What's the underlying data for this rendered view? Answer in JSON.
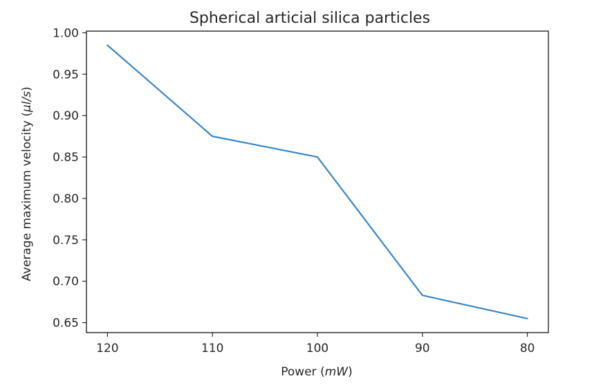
{
  "chart_data": {
    "type": "line",
    "title": "Spherical articial silica particles",
    "xlabel_prefix": "Power (",
    "xlabel_unit": "mW",
    "xlabel_suffix": ")",
    "ylabel_prefix": "Average maximum velocity (",
    "ylabel_unit": "μl/s",
    "ylabel_suffix": ")",
    "x": [
      120,
      110,
      100,
      90,
      80
    ],
    "xticks": [
      "120",
      "110",
      "100",
      "90",
      "80"
    ],
    "x_axis_inverted": true,
    "xlim": [
      122,
      78
    ],
    "ylim": [
      0.638,
      1.002
    ],
    "yticks": [
      0.65,
      0.7,
      0.75,
      0.8,
      0.85,
      0.9,
      0.95,
      1.0
    ],
    "ytick_labels": [
      "0.65",
      "0.70",
      "0.75",
      "0.80",
      "0.85",
      "0.90",
      "0.95",
      "1.00"
    ],
    "series": [
      {
        "values": [
          0.985,
          0.875,
          0.85,
          0.683,
          0.655
        ],
        "color": "#3a86c2"
      }
    ],
    "grid": false,
    "legend": "none"
  }
}
